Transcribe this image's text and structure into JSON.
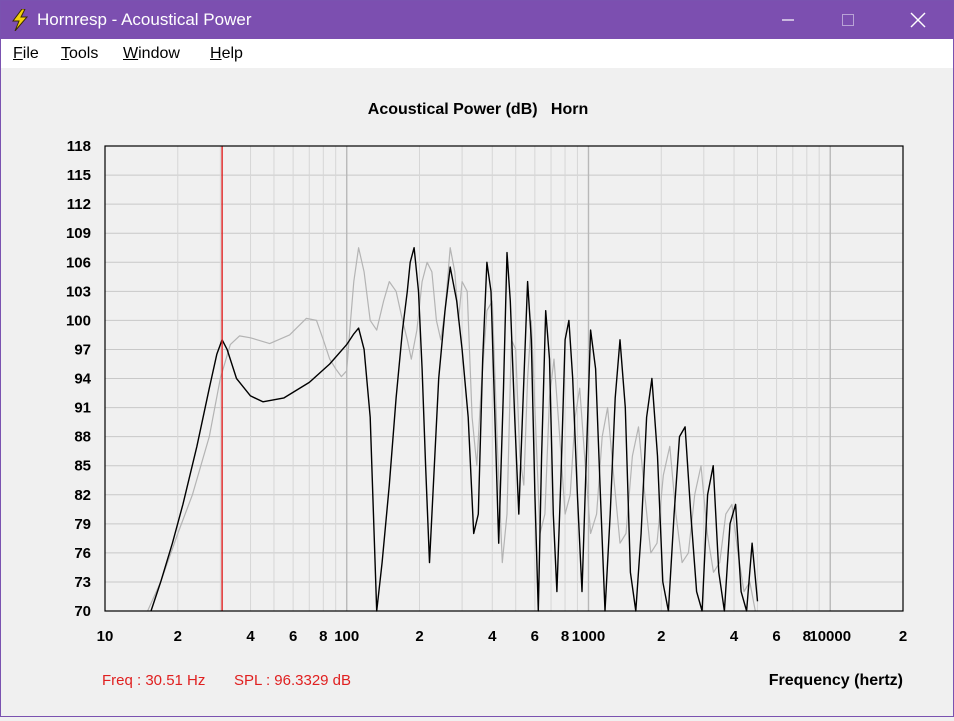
{
  "window": {
    "title": "Hornresp - Acoustical Power",
    "controls": [
      "minimize",
      "maximize",
      "close"
    ]
  },
  "menu": [
    {
      "label": "File",
      "mnemonic": "F",
      "rest": "ile"
    },
    {
      "label": "Tools",
      "mnemonic": "T",
      "rest": "ools"
    },
    {
      "label": "Window",
      "mnemonic": "W",
      "rest": "indow"
    },
    {
      "label": "Help",
      "mnemonic": "H",
      "rest": "elp"
    }
  ],
  "chart": {
    "title": "Acoustical Power (dB)   Horn",
    "xlabel": "Frequency (hertz)",
    "freq_readout": "Freq : 30.51 Hz",
    "spl_readout": "SPL : 96.3329 dB"
  },
  "colors": {
    "titlebar": "#7c4fb0",
    "grid": "#c8c8c8",
    "primary_trace": "#000000",
    "reference_trace": "#b4b4b4",
    "cursor": "#e02020",
    "readout": "#e02020"
  },
  "chart_data": {
    "type": "line",
    "title": "Acoustical Power (dB)   Horn",
    "xlabel": "Frequency (hertz)",
    "ylabel": "",
    "x_scale": "log",
    "xlim": [
      10,
      20000
    ],
    "ylim": [
      70,
      118
    ],
    "y_ticks": [
      118,
      115,
      112,
      109,
      106,
      103,
      100,
      97,
      94,
      91,
      88,
      85,
      82,
      79,
      76,
      73,
      70
    ],
    "x_tick_labels": [
      {
        "x": 10,
        "label": "10"
      },
      {
        "x": 20,
        "label": "2"
      },
      {
        "x": 40,
        "label": "4"
      },
      {
        "x": 60,
        "label": "6"
      },
      {
        "x": 80,
        "label": "8"
      },
      {
        "x": 100,
        "label": "100"
      },
      {
        "x": 200,
        "label": "2"
      },
      {
        "x": 400,
        "label": "4"
      },
      {
        "x": 600,
        "label": "6"
      },
      {
        "x": 800,
        "label": "8"
      },
      {
        "x": 1000,
        "label": "1000"
      },
      {
        "x": 2000,
        "label": "2"
      },
      {
        "x": 4000,
        "label": "4"
      },
      {
        "x": 6000,
        "label": "6"
      },
      {
        "x": 8000,
        "label": "8"
      },
      {
        "x": 10000,
        "label": "10000"
      },
      {
        "x": 20000,
        "label": "2"
      }
    ],
    "grid": true,
    "cursor": {
      "freq": 30.51,
      "spl": 96.3329
    },
    "series": [
      {
        "color": "#000000",
        "x": [
          15.5,
          17,
          19,
          21,
          24,
          27,
          29,
          30.5,
          32,
          35,
          40,
          45,
          55,
          70,
          85,
          100,
          107,
          112,
          118,
          125,
          133,
          140,
          150,
          160,
          170,
          178,
          183,
          190,
          198,
          205,
          212,
          220,
          240,
          255,
          268,
          285,
          300,
          318,
          335,
          350,
          365,
          380,
          395,
          410,
          425,
          445,
          460,
          475,
          495,
          515,
          535,
          560,
          580,
          600,
          620,
          640,
          665,
          690,
          715,
          740,
          770,
          800,
          830,
          860,
          900,
          940,
          980,
          1020,
          1070,
          1120,
          1170,
          1230,
          1290,
          1350,
          1420,
          1490,
          1570,
          1650,
          1740,
          1830,
          1930,
          2030,
          2140,
          2260,
          2380,
          2510,
          2650,
          2800,
          2950,
          3110,
          3280,
          3460,
          3650,
          3850,
          4060,
          4280,
          4510,
          4750,
          5000
        ],
        "y": [
          70,
          73,
          77,
          81,
          87,
          93,
          96.5,
          98,
          97,
          94,
          92.2,
          91.6,
          92,
          93.6,
          95.5,
          97.5,
          98.6,
          99.2,
          97,
          90,
          70,
          75,
          83,
          92,
          99,
          103,
          106,
          107.5,
          103,
          95,
          85,
          75,
          94,
          101,
          105.5,
          102,
          97,
          90,
          78,
          80,
          96,
          106,
          103,
          90,
          77,
          93,
          107,
          102,
          90,
          80,
          91,
          104,
          98,
          82,
          70,
          86,
          101,
          96,
          80,
          72,
          84,
          98,
          100,
          94,
          82,
          72,
          86,
          99,
          95,
          82,
          70,
          80,
          92,
          98,
          91,
          74,
          70,
          78,
          90,
          94,
          86,
          73,
          70,
          80,
          88,
          89,
          80,
          72,
          70,
          82,
          85,
          74,
          70,
          79,
          81,
          72,
          70,
          77,
          71
        ]
      },
      {
        "color": "#b4b4b4",
        "x": [
          15,
          17,
          20,
          23,
          27,
          30,
          33,
          36,
          40,
          48,
          58,
          68,
          75,
          80,
          85,
          90,
          95,
          100,
          103,
          107,
          112,
          118,
          125,
          133,
          142,
          150,
          160,
          170,
          178,
          185,
          195,
          205,
          215,
          225,
          235,
          245,
          255,
          268,
          280,
          290,
          300,
          315,
          330,
          345,
          360,
          380,
          400,
          420,
          440,
          460,
          480,
          500,
          520,
          540,
          560,
          580,
          600,
          630,
          660,
          690,
          720,
          760,
          800,
          840,
          880,
          920,
          970,
          1020,
          1080,
          1140,
          1200,
          1270,
          1350,
          1430,
          1520,
          1610,
          1710,
          1810,
          1920,
          2040,
          2170,
          2300,
          2440,
          2590,
          2750,
          2920,
          3100,
          3290,
          3490,
          3700,
          3920,
          4150,
          4400,
          4650,
          4900
        ],
        "y": [
          70,
          73,
          78,
          82,
          88,
          94,
          97.5,
          98.4,
          98.2,
          97.6,
          98.5,
          100.2,
          100,
          98,
          96,
          95,
          94.2,
          94.8,
          99,
          104,
          107.5,
          105,
          100,
          99,
          102,
          104,
          103,
          100,
          98,
          96,
          99,
          104,
          106,
          105,
          100,
          98,
          101,
          107.5,
          105,
          100,
          104,
          103,
          90,
          85,
          93,
          101,
          102,
          87,
          75,
          80,
          98,
          97,
          86,
          83,
          94,
          100,
          91,
          78,
          80,
          92,
          96,
          88,
          80,
          82,
          90,
          93,
          85,
          78,
          80,
          88,
          91,
          84,
          77,
          78,
          86,
          89,
          82,
          76,
          77,
          84,
          87,
          80,
          75,
          76,
          82,
          85,
          78,
          74,
          75,
          80,
          81,
          76,
          72,
          73,
          70
        ]
      }
    ]
  }
}
